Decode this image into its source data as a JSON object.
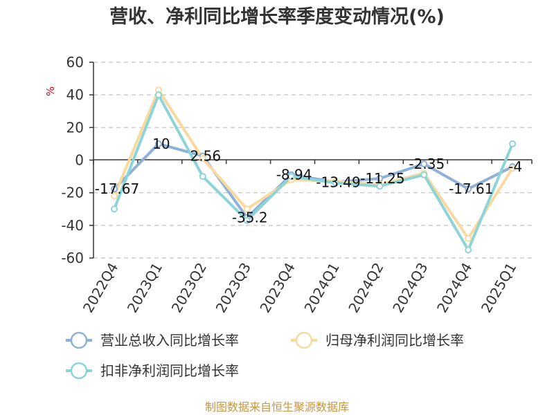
{
  "chart_data": {
    "type": "line",
    "title": "营收、净利同比增长率季度变动情况(%)",
    "ylabel": "%",
    "categories": [
      "2022Q4",
      "2023Q1",
      "2023Q2",
      "2023Q3",
      "2023Q4",
      "2024Q1",
      "2024Q2",
      "2024Q3",
      "2024Q4",
      "2025Q1"
    ],
    "ylim": [
      -60,
      60
    ],
    "yticks": [
      60,
      40,
      20,
      0,
      -20,
      -40,
      -60
    ],
    "grid": true,
    "legend_position": "bottom",
    "series": [
      {
        "name": "营业总收入同比增长率",
        "color": "#8fb0d9",
        "values": [
          -17.67,
          10,
          2.56,
          -35.2,
          -8.94,
          -13.49,
          -11.25,
          -2.35,
          -17.61,
          -4
        ],
        "labels": [
          "-17.67",
          "10",
          "2.56",
          "-35.2",
          "-8.94",
          "-13.49",
          "-11.25",
          "-2.35",
          "-17.61",
          "-4"
        ]
      },
      {
        "name": "归母净利润同比增长率",
        "color": "#f8d9a0",
        "values": [
          -22,
          43,
          1,
          -30,
          -12,
          -13,
          -15,
          -8,
          -48,
          -5
        ]
      },
      {
        "name": "扣非净利润同比增长率",
        "color": "#8dd4d8",
        "values": [
          -30,
          40,
          -10,
          -37,
          -10,
          -14,
          -16,
          -9,
          -55,
          10
        ]
      }
    ]
  },
  "source": "制图数据来自恒生聚源数据库"
}
